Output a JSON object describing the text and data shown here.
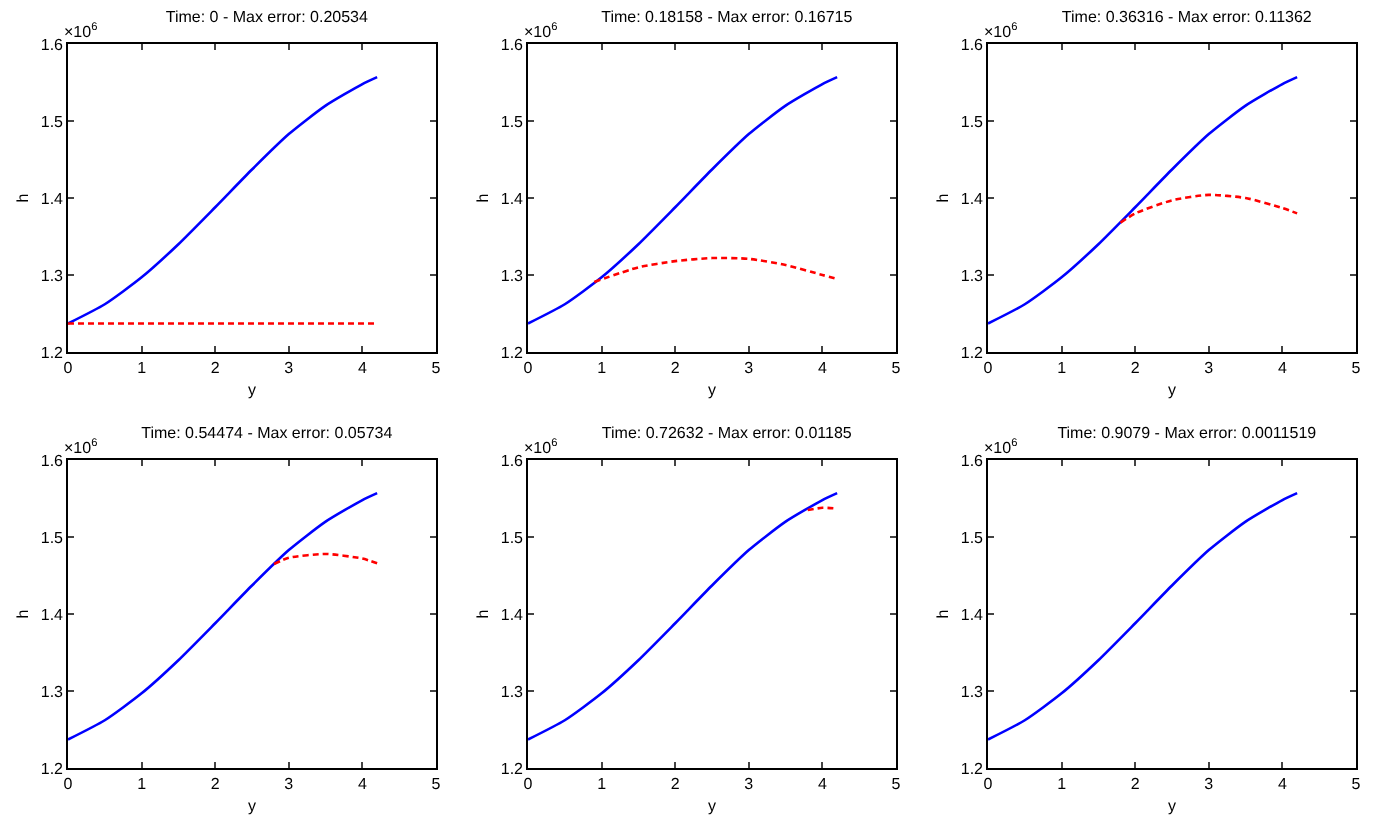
{
  "chart_data": [
    {
      "type": "line",
      "title": "Time: 0 - Max error: 0.20534",
      "xlabel": "y",
      "ylabel": "h",
      "annotations": [
        "×10$^{6}$"
      ],
      "xlim": [
        0,
        5
      ],
      "xticks": [
        0,
        1,
        2,
        3,
        4,
        5
      ],
      "ylim": [
        1.2,
        1.6
      ],
      "yticks": [
        1.2,
        1.3,
        1.4,
        1.5,
        1.6
      ],
      "grid": false,
      "marker": "none",
      "series": [
        {
          "color": "#0000ff",
          "line_style": "solid",
          "x": [
            0,
            0.5,
            1,
            1.5,
            2,
            2.5,
            3,
            3.5,
            4,
            4.2
          ],
          "values": [
            1.237,
            1.262,
            1.297,
            1.34,
            1.388,
            1.437,
            1.483,
            1.52,
            1.548,
            1.557
          ]
        },
        {
          "color": "#ff0000",
          "line_style": "dashed",
          "x": [
            0,
            4.2
          ],
          "values": [
            1.237,
            1.237
          ]
        }
      ]
    },
    {
      "type": "line",
      "title": "Time: 0.18158 - Max error: 0.16715",
      "xlabel": "y",
      "ylabel": "h",
      "annotations": [
        "×10$^{6}$"
      ],
      "xlim": [
        0,
        5
      ],
      "xticks": [
        0,
        1,
        2,
        3,
        4,
        5
      ],
      "ylim": [
        1.2,
        1.6
      ],
      "yticks": [
        1.2,
        1.3,
        1.4,
        1.5,
        1.6
      ],
      "grid": false,
      "marker": "none",
      "series": [
        {
          "color": "#0000ff",
          "line_style": "solid",
          "x": [
            0,
            0.5,
            1,
            1.5,
            2,
            2.5,
            3,
            3.5,
            4,
            4.2
          ],
          "values": [
            1.237,
            1.262,
            1.297,
            1.34,
            1.388,
            1.437,
            1.483,
            1.52,
            1.548,
            1.557
          ]
        },
        {
          "color": "#ff0000",
          "line_style": "dashed",
          "x": [
            0.9,
            1.5,
            2,
            2.5,
            3,
            3.5,
            4,
            4.2
          ],
          "values": [
            1.291,
            1.31,
            1.318,
            1.322,
            1.321,
            1.313,
            1.3,
            1.295
          ]
        }
      ]
    },
    {
      "type": "line",
      "title": "Time: 0.36316 - Max error: 0.11362",
      "xlabel": "y",
      "ylabel": "h",
      "annotations": [
        "×10$^{6}$"
      ],
      "xlim": [
        0,
        5
      ],
      "xticks": [
        0,
        1,
        2,
        3,
        4,
        5
      ],
      "ylim": [
        1.2,
        1.6
      ],
      "yticks": [
        1.2,
        1.3,
        1.4,
        1.5,
        1.6
      ],
      "grid": false,
      "marker": "none",
      "series": [
        {
          "color": "#0000ff",
          "line_style": "solid",
          "x": [
            0,
            0.5,
            1,
            1.5,
            2,
            2.5,
            3,
            3.5,
            4,
            4.2
          ],
          "values": [
            1.237,
            1.262,
            1.297,
            1.34,
            1.388,
            1.437,
            1.483,
            1.52,
            1.548,
            1.557
          ]
        },
        {
          "color": "#ff0000",
          "line_style": "dashed",
          "x": [
            1.8,
            2,
            2.5,
            3,
            3.5,
            4,
            4.2
          ],
          "values": [
            1.368,
            1.38,
            1.397,
            1.404,
            1.4,
            1.387,
            1.38
          ]
        }
      ]
    },
    {
      "type": "line",
      "title": "Time: 0.54474 - Max error: 0.05734",
      "xlabel": "y",
      "ylabel": "h",
      "annotations": [
        "×10$^{6}$"
      ],
      "xlim": [
        0,
        5
      ],
      "xticks": [
        0,
        1,
        2,
        3,
        4,
        5
      ],
      "ylim": [
        1.2,
        1.6
      ],
      "yticks": [
        1.2,
        1.3,
        1.4,
        1.5,
        1.6
      ],
      "grid": false,
      "marker": "none",
      "series": [
        {
          "color": "#0000ff",
          "line_style": "solid",
          "x": [
            0,
            0.5,
            1,
            1.5,
            2,
            2.5,
            3,
            3.5,
            4,
            4.2
          ],
          "values": [
            1.237,
            1.262,
            1.297,
            1.34,
            1.388,
            1.437,
            1.483,
            1.52,
            1.548,
            1.557
          ]
        },
        {
          "color": "#ff0000",
          "line_style": "dashed",
          "x": [
            2.8,
            3,
            3.5,
            4,
            4.2
          ],
          "values": [
            1.465,
            1.473,
            1.478,
            1.472,
            1.466
          ]
        }
      ]
    },
    {
      "type": "line",
      "title": "Time: 0.72632 - Max error: 0.01185",
      "xlabel": "y",
      "ylabel": "h",
      "annotations": [
        "×10$^{6}$"
      ],
      "xlim": [
        0,
        5
      ],
      "xticks": [
        0,
        1,
        2,
        3,
        4,
        5
      ],
      "ylim": [
        1.2,
        1.6
      ],
      "yticks": [
        1.2,
        1.3,
        1.4,
        1.5,
        1.6
      ],
      "grid": false,
      "marker": "none",
      "series": [
        {
          "color": "#0000ff",
          "line_style": "solid",
          "x": [
            0,
            0.5,
            1,
            1.5,
            2,
            2.5,
            3,
            3.5,
            4,
            4.2
          ],
          "values": [
            1.237,
            1.262,
            1.297,
            1.34,
            1.388,
            1.437,
            1.483,
            1.52,
            1.548,
            1.557
          ]
        },
        {
          "color": "#ff0000",
          "line_style": "dashed",
          "x": [
            3.8,
            4,
            4.2
          ],
          "values": [
            1.535,
            1.538,
            1.537
          ]
        }
      ]
    },
    {
      "type": "line",
      "title": "Time: 0.9079 - Max error: 0.0011519",
      "xlabel": "y",
      "ylabel": "h",
      "annotations": [
        "×10$^{6}$"
      ],
      "xlim": [
        0,
        5
      ],
      "xticks": [
        0,
        1,
        2,
        3,
        4,
        5
      ],
      "ylim": [
        1.2,
        1.6
      ],
      "yticks": [
        1.2,
        1.3,
        1.4,
        1.5,
        1.6
      ],
      "grid": false,
      "marker": "none",
      "series": [
        {
          "color": "#0000ff",
          "line_style": "solid",
          "x": [
            0,
            0.5,
            1,
            1.5,
            2,
            2.5,
            3,
            3.5,
            4,
            4.2
          ],
          "values": [
            1.237,
            1.262,
            1.297,
            1.34,
            1.388,
            1.437,
            1.483,
            1.52,
            1.548,
            1.557
          ]
        }
      ]
    }
  ]
}
